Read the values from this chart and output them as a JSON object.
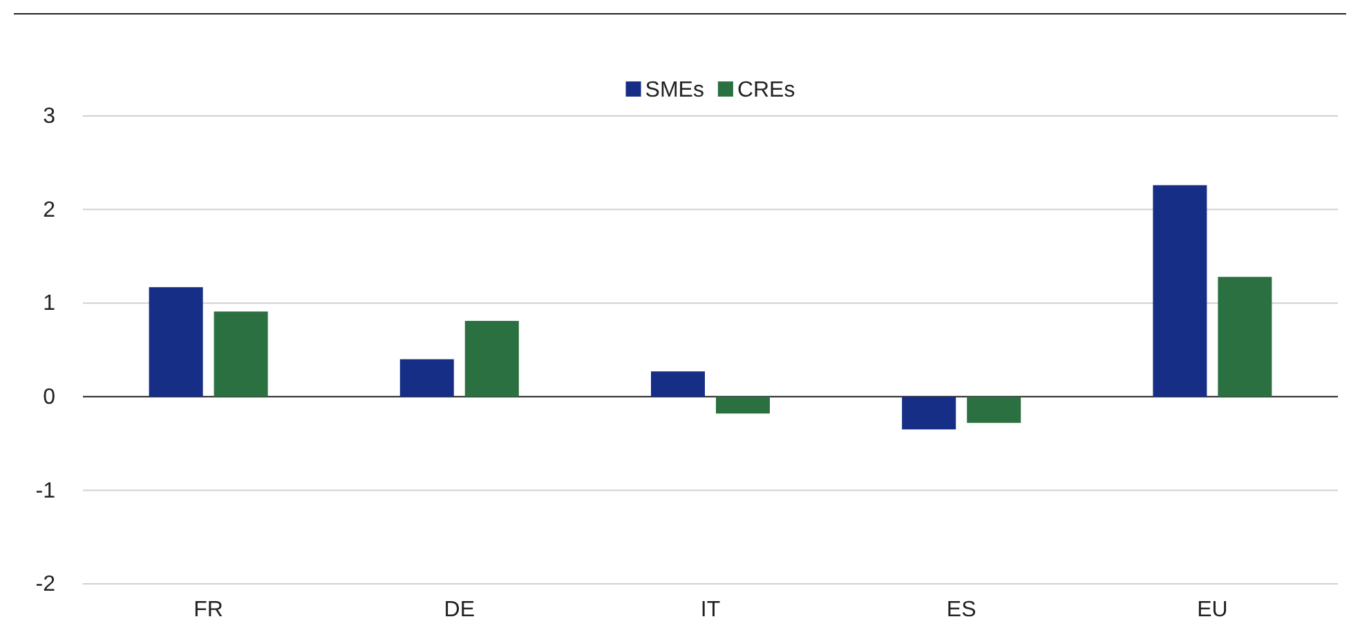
{
  "chart_data": {
    "type": "bar",
    "categories": [
      "FR",
      "DE",
      "IT",
      "ES",
      "EU"
    ],
    "series": [
      {
        "name": "SMEs",
        "color": "#162e85",
        "values": [
          1.17,
          0.4,
          0.27,
          -0.35,
          2.26
        ]
      },
      {
        "name": "CREs",
        "color": "#2a7041",
        "values": [
          0.91,
          0.81,
          -0.18,
          -0.28,
          1.28
        ]
      }
    ],
    "ylim": [
      -2,
      3
    ],
    "yticks": [
      -2,
      -1,
      0,
      1,
      2,
      3
    ],
    "grid": "y",
    "legend": "top"
  }
}
